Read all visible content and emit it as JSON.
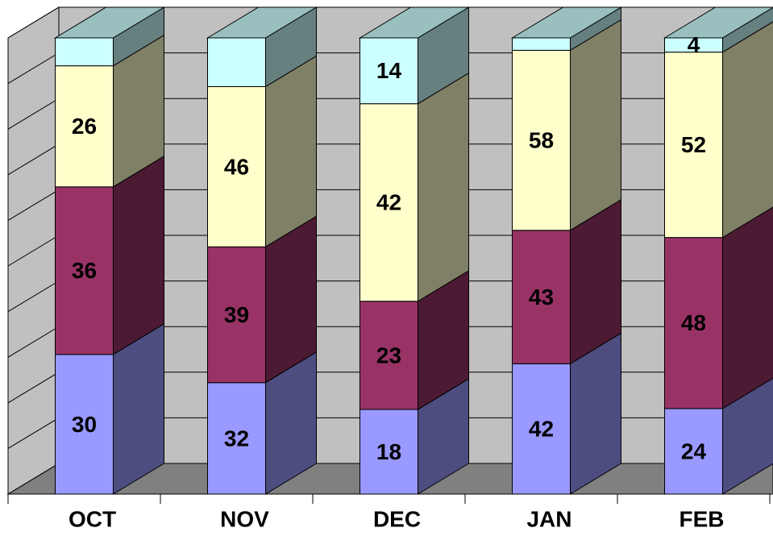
{
  "chart_data": {
    "type": "stacked_bar_3d_percent",
    "categories": [
      "OCT",
      "NOV",
      "DEC",
      "JAN",
      "FEB"
    ],
    "series": [
      {
        "color": "#9999ff",
        "values": [
          30,
          32,
          18,
          42,
          24
        ]
      },
      {
        "color": "#993366",
        "values": [
          36,
          39,
          23,
          43,
          48
        ]
      },
      {
        "color": "#ffffcc",
        "values": [
          26,
          46,
          42,
          58,
          52
        ]
      },
      {
        "color": "#ccffff",
        "values": [
          6,
          14,
          14,
          4,
          4
        ],
        "value_labels": [
          null,
          null,
          "14",
          null,
          "4"
        ]
      }
    ],
    "ylim": [
      0,
      100
    ],
    "yticks": [
      0,
      10,
      20,
      30,
      40,
      50,
      60,
      70,
      80,
      90,
      100
    ],
    "grid": true
  }
}
